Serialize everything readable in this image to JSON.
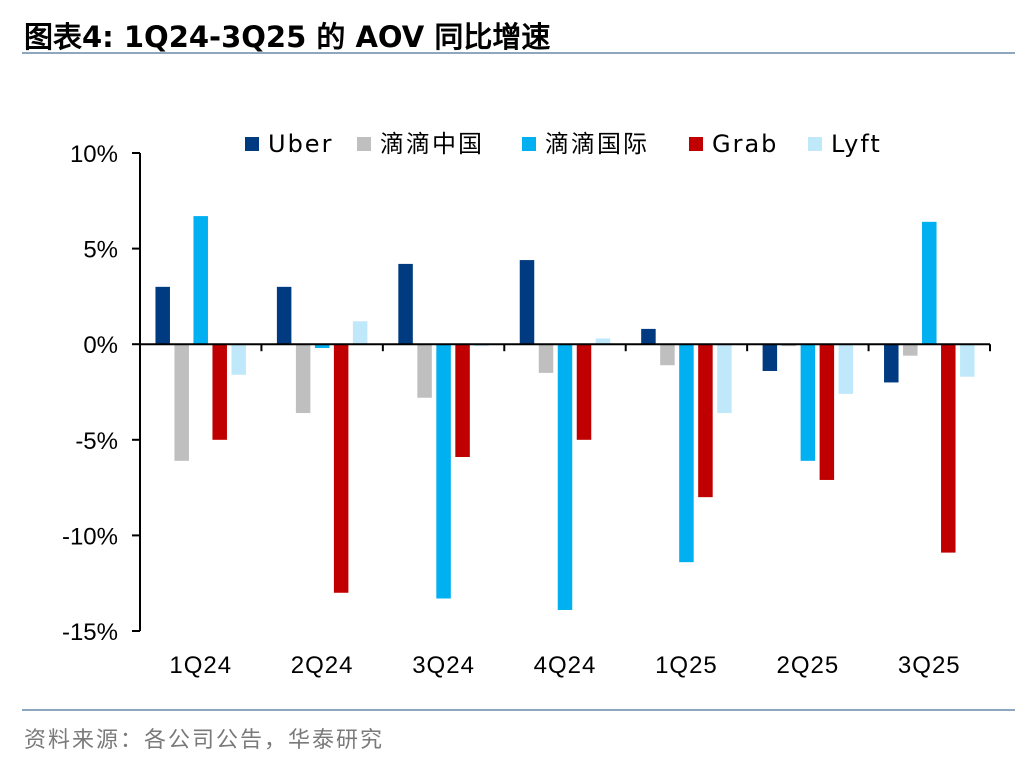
{
  "figure": {
    "title": "图表4:   1Q24-3Q25 的 AOV 同比增速",
    "source": "资料来源：各公司公告，华泰研究"
  },
  "chart_data": {
    "type": "bar",
    "title": "1Q24-3Q25 的 AOV 同比增速",
    "xlabel": "",
    "ylabel": "",
    "ylim": [
      -15,
      10
    ],
    "yticks": [
      10,
      5,
      0,
      -5,
      -10,
      -15
    ],
    "ytick_labels": [
      "10%",
      "5%",
      "0%",
      "-5%",
      "-10%",
      "-15%"
    ],
    "categories": [
      "1Q24",
      "2Q24",
      "3Q24",
      "4Q24",
      "1Q25",
      "2Q25",
      "3Q25"
    ],
    "legend_position": "top",
    "series": [
      {
        "name": "Uber",
        "color": "#003a80",
        "values": [
          3.0,
          3.0,
          4.2,
          4.4,
          0.8,
          -1.4,
          -2.0
        ]
      },
      {
        "name": "滴滴中国",
        "color": "#bfbfbf",
        "values": [
          -6.1,
          -3.6,
          -2.8,
          -1.5,
          -1.1,
          -0.1,
          -0.6
        ]
      },
      {
        "name": "滴滴国际",
        "color": "#00b0f0",
        "values": [
          6.7,
          -0.2,
          -13.3,
          -13.9,
          -11.4,
          -6.1,
          6.4
        ]
      },
      {
        "name": "Grab",
        "color": "#c00000",
        "values": [
          -5.0,
          -13.0,
          -5.9,
          -5.0,
          -8.0,
          -7.1,
          -10.9
        ]
      },
      {
        "name": "Lyft",
        "color": "#bfe9fb",
        "values": [
          -1.6,
          1.2,
          -0.1,
          0.3,
          -3.6,
          -2.6,
          -1.7
        ]
      }
    ]
  }
}
